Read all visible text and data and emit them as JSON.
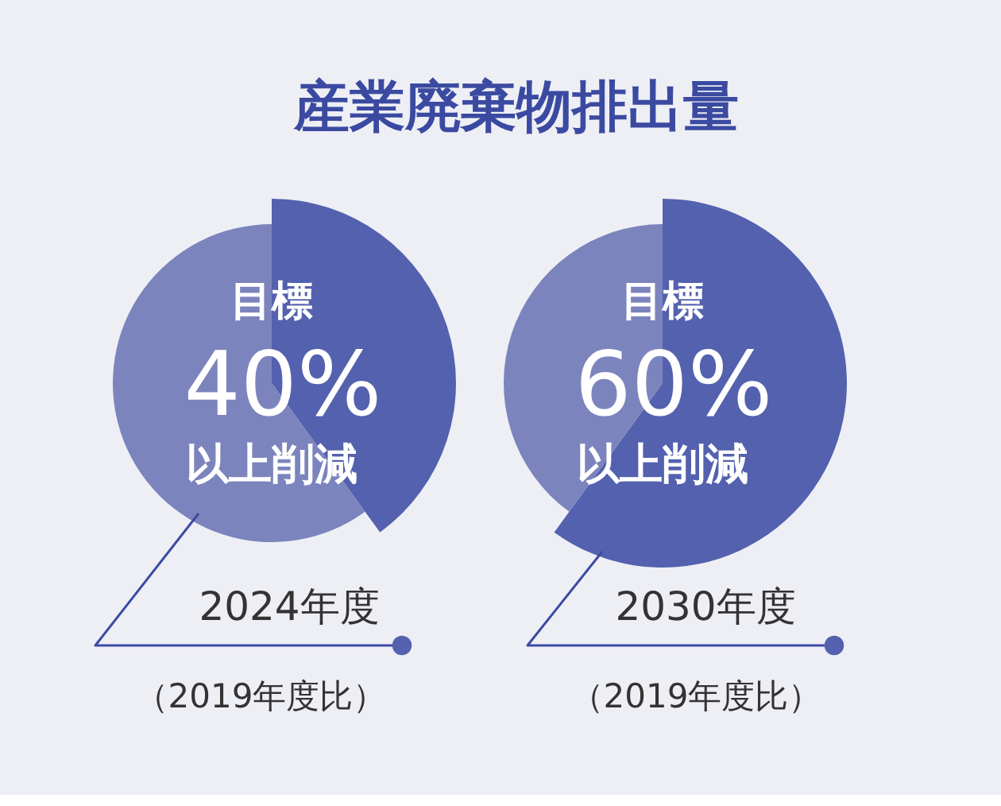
{
  "chart_data": [
    {
      "type": "pie",
      "title": "産業廃棄物排出量",
      "categories": [
        null,
        null
      ],
      "values": [
        40,
        60
      ],
      "colors": [
        "#5361ae",
        "#7c84bd"
      ],
      "value_labels": [
        "40%",
        null
      ],
      "annotations": [
        "目標",
        "以上削減",
        "2024年度",
        "（2019年度比）"
      ]
    },
    {
      "type": "pie",
      "categories": [
        null,
        null
      ],
      "values": [
        60,
        40
      ],
      "colors": [
        "#5361ae",
        "#7c84bd"
      ],
      "value_labels": [
        "60%",
        null
      ],
      "annotations": [
        "目標",
        "以上削減",
        "2030年度",
        "（2019年度比）"
      ]
    }
  ]
}
